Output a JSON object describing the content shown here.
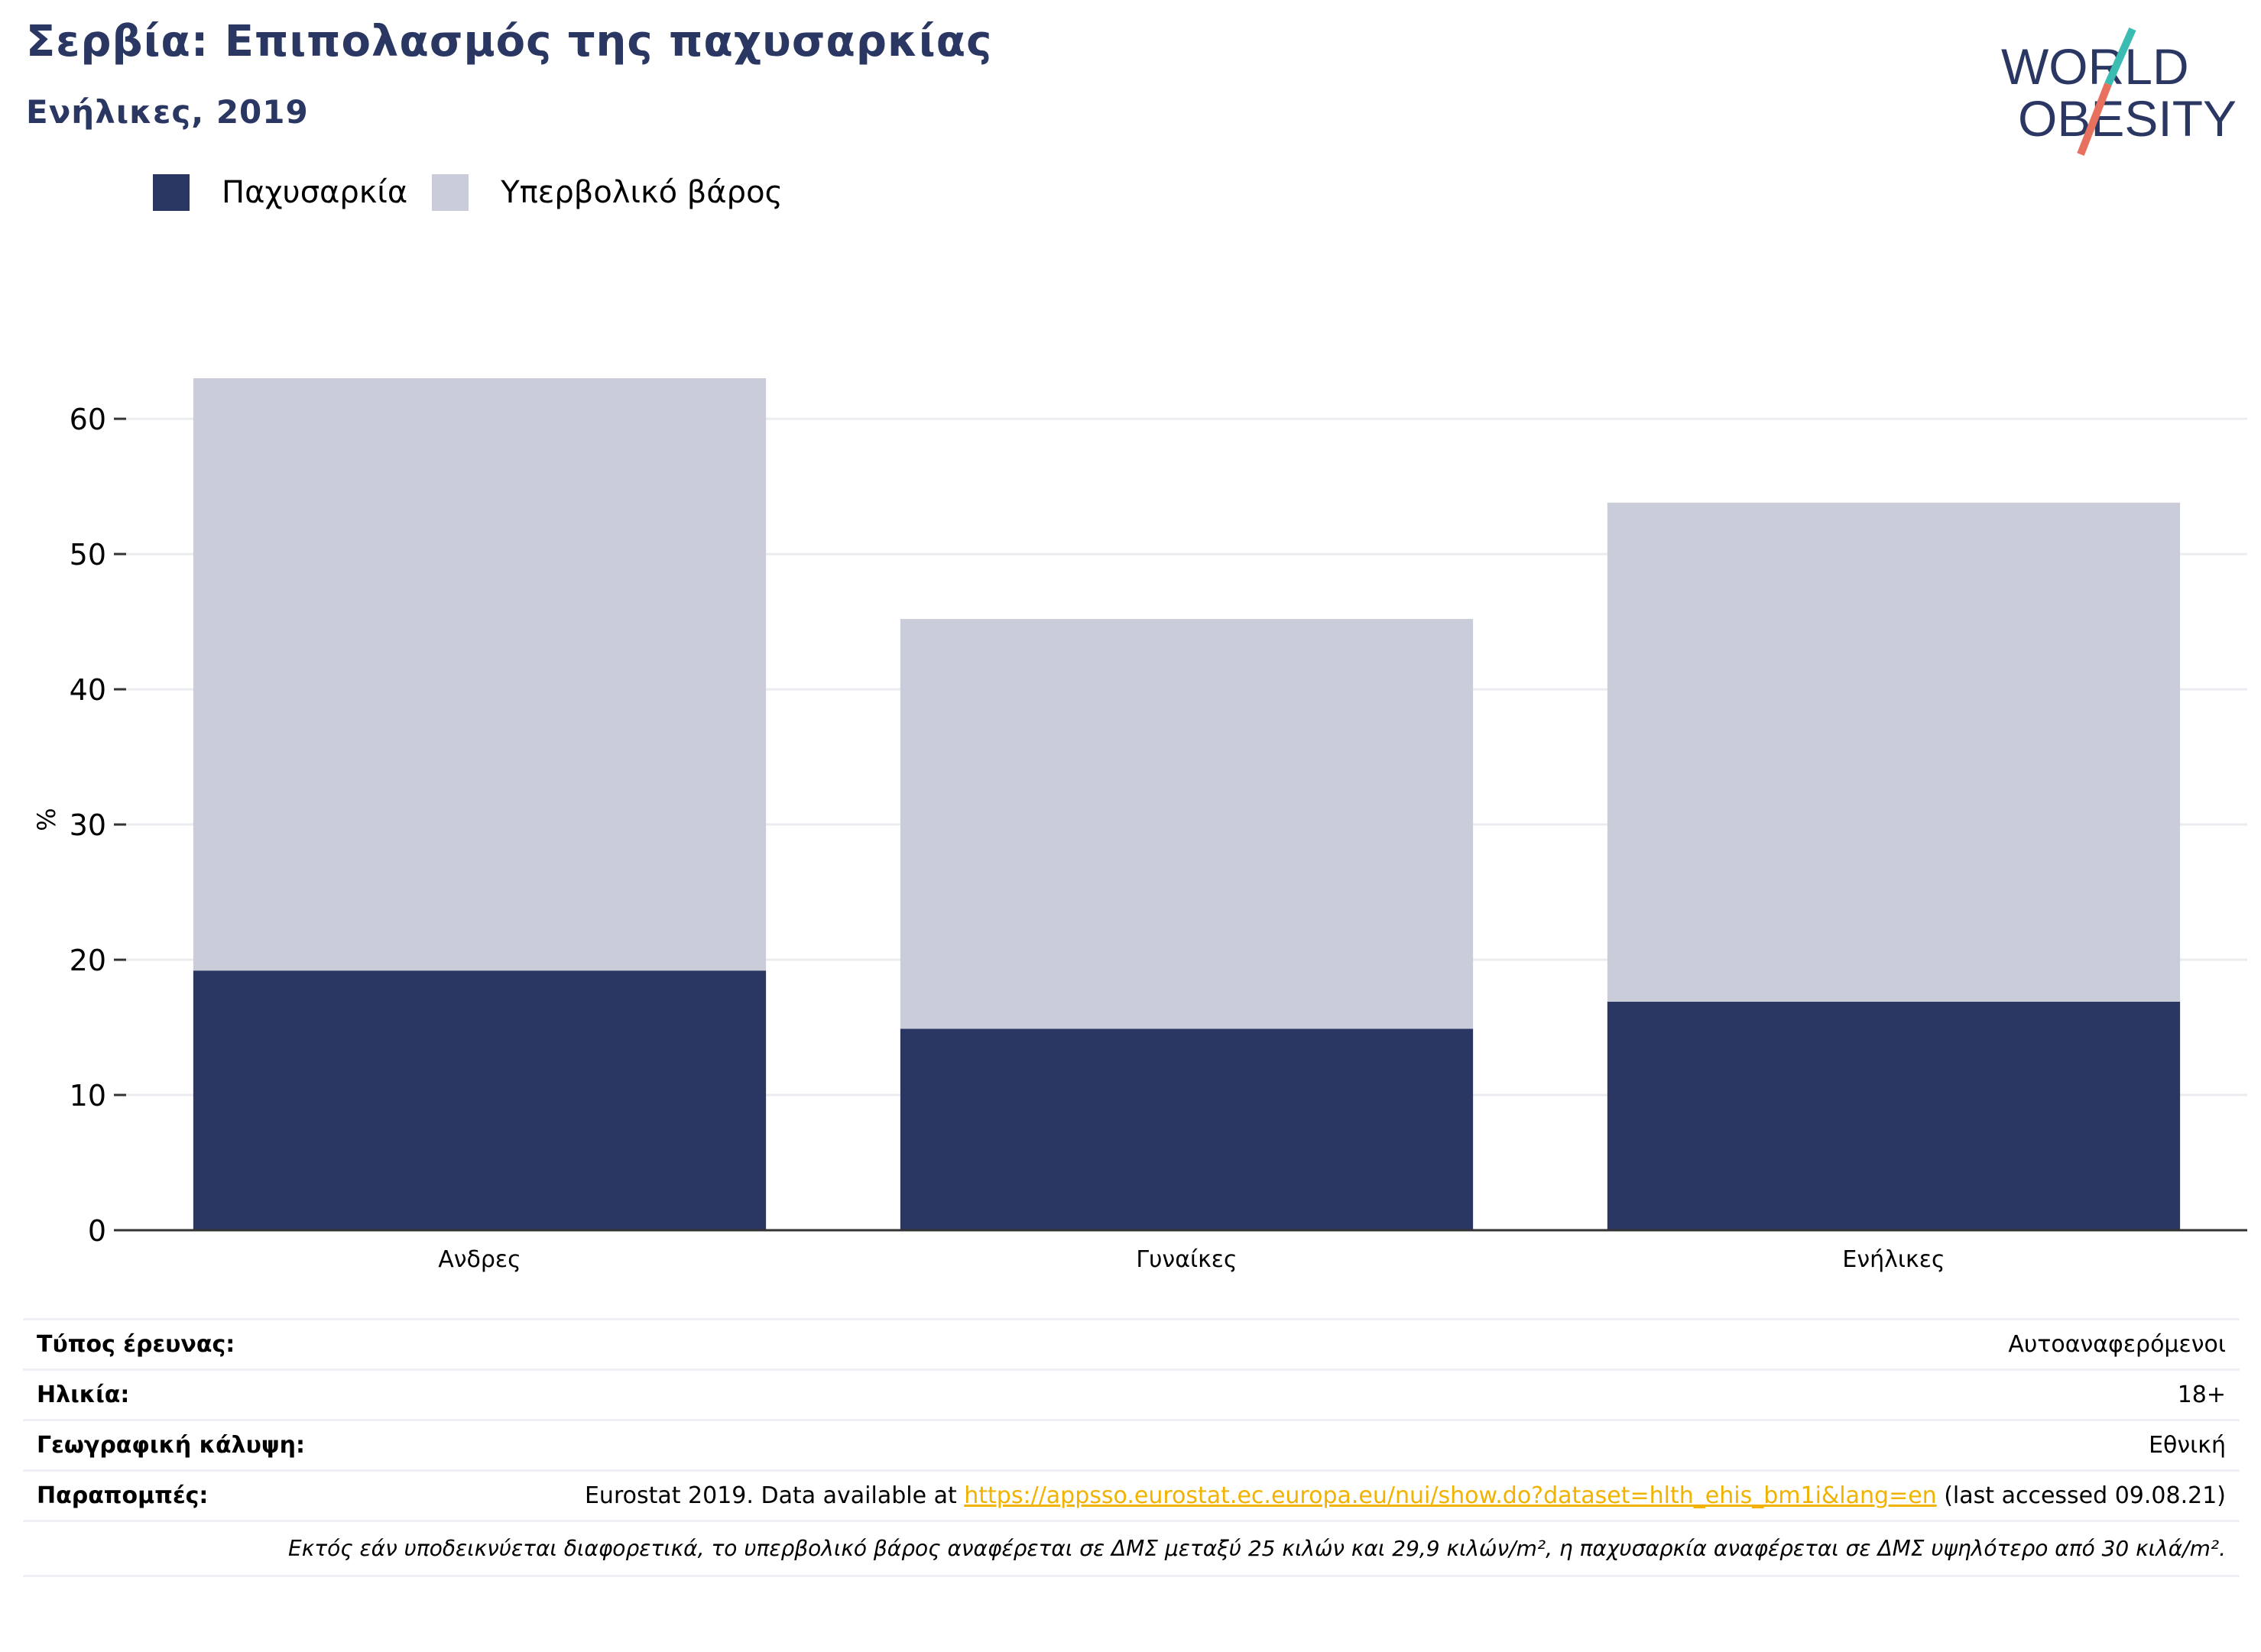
{
  "header": {
    "title": "Σερβία: Επιπολασμός της παχυσαρκίας",
    "subtitle": "Ενήλικες, 2019"
  },
  "logo": {
    "line1": "WORLD",
    "line2": "OBESITY",
    "icon": "slash-mark"
  },
  "chart_data": {
    "type": "bar",
    "stacked": true,
    "categories": [
      "Ανδρες",
      "Γυναίκες",
      "Ενήλικες"
    ],
    "series": [
      {
        "name": "Παχυσαρκία",
        "values": [
          19.2,
          14.9,
          16.9
        ],
        "color": "#2b3763"
      },
      {
        "name": "Υπερβολικό βάρος",
        "values": [
          43.8,
          30.3,
          36.9
        ],
        "color": "#cacdd9"
      }
    ],
    "ylabel": "%",
    "ylim": [
      0,
      63
    ],
    "yticks": [
      0,
      10,
      20,
      30,
      40,
      50,
      60
    ],
    "grid": true,
    "legend_position": "top-left"
  },
  "info": {
    "survey_type_label": "Τύπος έρευνας:",
    "survey_type_value": "Αυτοαναφερόμενοι",
    "age_label": "Ηλικία:",
    "age_value": "18+",
    "coverage_label": "Γεωγραφική κάλυψη:",
    "coverage_value": "Εθνική",
    "refs_label": "Παραπομπές:",
    "refs_prefix": "Eurostat 2019. Data available at ",
    "refs_link": "https://appsso.eurostat.ec.europa.eu/nui/show.do?dataset=hlth_ehis_bm1i&lang=en",
    "refs_suffix": " (last accessed 09.08.21)",
    "footnote": "Εκτός εάν υποδεικνύεται διαφορετικά, το υπερβολικό βάρος αναφέρεται σε ΔΜΣ μεταξύ 25 κιλών και 29,9 κιλών/m², η παχυσαρκία αναφέρεται σε ΔΜΣ υψηλότερο από 30 κιλά/m²."
  }
}
